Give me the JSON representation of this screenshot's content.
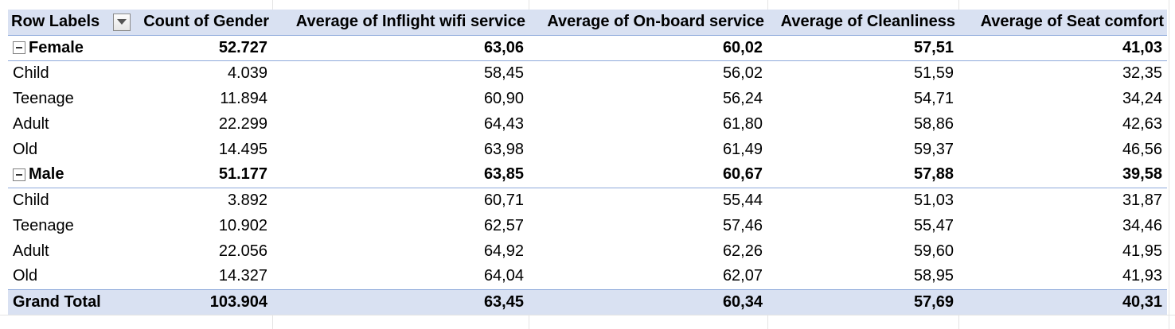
{
  "pivot": {
    "headers": {
      "row_labels": "Row Labels",
      "count_gender": "Count of Gender",
      "avg_wifi": "Average of Inflight wifi service",
      "avg_onboard": "Average of On-board service",
      "avg_clean": "Average of Cleanliness",
      "avg_seat": "Average of Seat comfort"
    },
    "groups": [
      {
        "label": "Female",
        "values": [
          "52.727",
          "63,06",
          "60,02",
          "57,51",
          "41,03"
        ],
        "children": [
          {
            "label": "Child",
            "values": [
              "4.039",
              "58,45",
              "56,02",
              "51,59",
              "32,35"
            ]
          },
          {
            "label": "Teenage",
            "values": [
              "11.894",
              "60,90",
              "56,24",
              "54,71",
              "34,24"
            ]
          },
          {
            "label": "Adult",
            "values": [
              "22.299",
              "64,43",
              "61,80",
              "58,86",
              "42,63"
            ]
          },
          {
            "label": "Old",
            "values": [
              "14.495",
              "63,98",
              "61,49",
              "59,37",
              "46,56"
            ]
          }
        ]
      },
      {
        "label": "Male",
        "values": [
          "51.177",
          "63,85",
          "60,67",
          "57,88",
          "39,58"
        ],
        "children": [
          {
            "label": "Child",
            "values": [
              "3.892",
              "60,71",
              "55,44",
              "51,03",
              "31,87"
            ]
          },
          {
            "label": "Teenage",
            "values": [
              "10.902",
              "62,57",
              "57,46",
              "55,47",
              "34,46"
            ]
          },
          {
            "label": "Adult",
            "values": [
              "22.056",
              "64,92",
              "62,26",
              "59,60",
              "41,95"
            ]
          },
          {
            "label": "Old",
            "values": [
              "14.327",
              "64,04",
              "62,07",
              "58,95",
              "41,93"
            ]
          }
        ]
      }
    ],
    "grand_total": {
      "label": "Grand Total",
      "values": [
        "103.904",
        "63,45",
        "60,34",
        "57,69",
        "40,31"
      ]
    }
  },
  "icons": {
    "filter": "dropdown-filter-icon",
    "collapse": "collapse-minus-icon"
  },
  "colors": {
    "header_fill": "#d9e1f2",
    "border_accent": "#8ea9db"
  }
}
